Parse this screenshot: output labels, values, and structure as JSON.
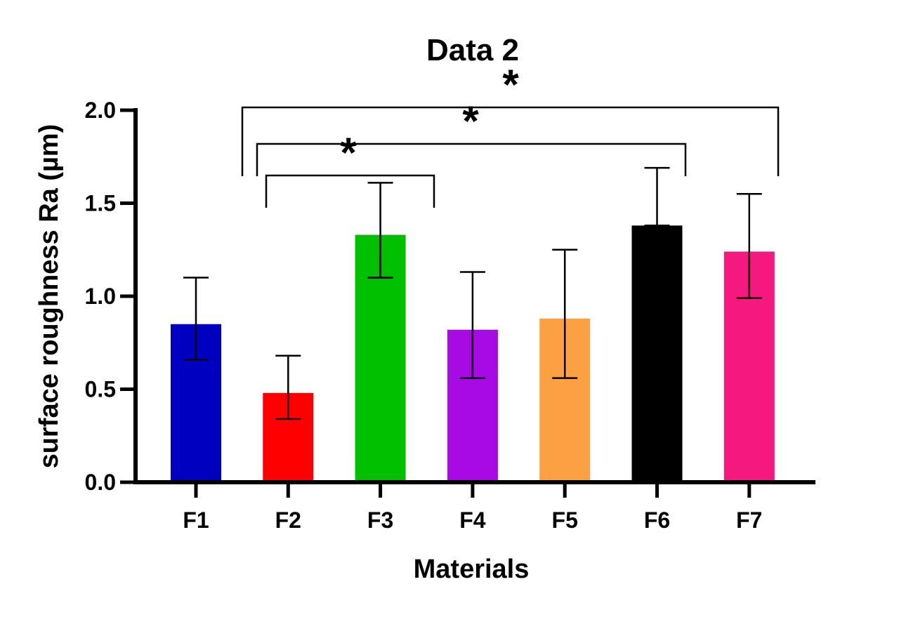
{
  "chart_data": {
    "type": "bar",
    "title": "Data 2",
    "xlabel": "Materials",
    "ylabel": "surface roughness Ra (µm)",
    "ylim": [
      0,
      2.0
    ],
    "yticks": [
      "0.0",
      "0.5",
      "1.0",
      "1.5",
      "2.0"
    ],
    "ytick_values": [
      0,
      0.5,
      1.0,
      1.5,
      2.0
    ],
    "categories": [
      "F1",
      "F2",
      "F3",
      "F4",
      "F5",
      "F6",
      "F7"
    ],
    "values": [
      0.85,
      0.48,
      1.33,
      0.82,
      0.88,
      1.38,
      1.24
    ],
    "error_upper": [
      1.1,
      0.68,
      1.61,
      1.13,
      1.25,
      1.69,
      1.55
    ],
    "error_lower": [
      0.66,
      0.34,
      1.1,
      0.56,
      0.56,
      1.38,
      0.99
    ],
    "colors": [
      "#0000C0",
      "#FF0000",
      "#00C000",
      "#A70BE3",
      "#FBA144",
      "#000000",
      "#F5197F"
    ],
    "grid": false,
    "significance": [
      {
        "from": "F2",
        "to": "F3",
        "label": "*"
      },
      {
        "from": "F2",
        "to": "F6",
        "label": "*"
      },
      {
        "from": "F2",
        "to": "F7",
        "label": "*"
      }
    ]
  }
}
